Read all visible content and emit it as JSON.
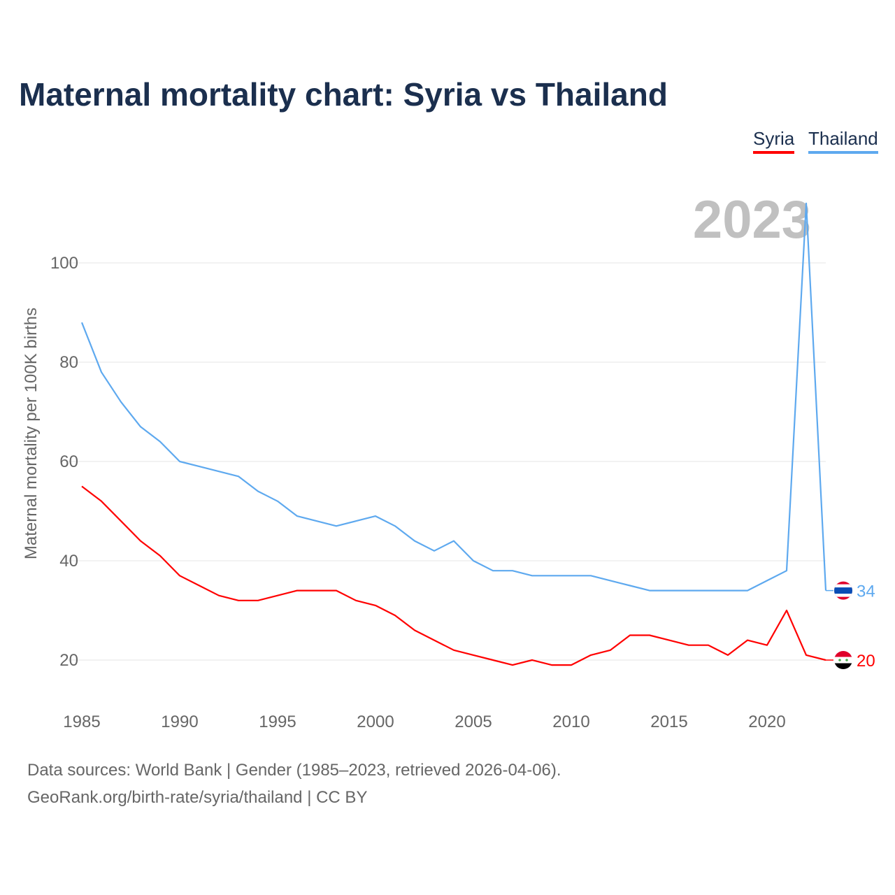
{
  "chart_data": {
    "type": "line",
    "title": "Maternal mortality chart: Syria vs Thailand",
    "ylabel": "Maternal mortality per 100K births",
    "xlabel": "",
    "year_label": "2023",
    "ylim": [
      10,
      115
    ],
    "xlim": [
      1985,
      2023
    ],
    "yticks": [
      20,
      40,
      60,
      80,
      100
    ],
    "xticks": [
      1985,
      1990,
      1995,
      2000,
      2005,
      2010,
      2015,
      2020
    ],
    "grid": true,
    "legend_position": "top-right",
    "x": [
      1985,
      1986,
      1987,
      1988,
      1989,
      1990,
      1991,
      1992,
      1993,
      1994,
      1995,
      1996,
      1997,
      1998,
      1999,
      2000,
      2001,
      2002,
      2003,
      2004,
      2005,
      2006,
      2007,
      2008,
      2009,
      2010,
      2011,
      2012,
      2013,
      2014,
      2015,
      2016,
      2017,
      2018,
      2019,
      2020,
      2021,
      2022,
      2023
    ],
    "series": [
      {
        "name": "Syria",
        "color": "#ff0000",
        "end_label": "20",
        "values": [
          55,
          52,
          48,
          44,
          41,
          37,
          35,
          33,
          32,
          32,
          33,
          34,
          34,
          34,
          32,
          31,
          29,
          26,
          24,
          22,
          21,
          20,
          19,
          20,
          19,
          19,
          21,
          22,
          25,
          25,
          24,
          23,
          23,
          21,
          24,
          23,
          30,
          21,
          20
        ]
      },
      {
        "name": "Thailand",
        "color": "#5ea9ef",
        "end_label": "34",
        "values": [
          88,
          78,
          72,
          67,
          64,
          60,
          59,
          58,
          57,
          54,
          52,
          49,
          48,
          47,
          48,
          49,
          47,
          44,
          42,
          44,
          40,
          38,
          38,
          37,
          37,
          37,
          37,
          36,
          35,
          34,
          34,
          34,
          34,
          34,
          34,
          36,
          38,
          112,
          34
        ]
      }
    ]
  },
  "footer": {
    "line1": "Data sources: World Bank | Gender (1985–2023, retrieved 2026-04-06).",
    "line2": "GeoRank.org/birth-rate/syria/thailand | CC BY"
  }
}
